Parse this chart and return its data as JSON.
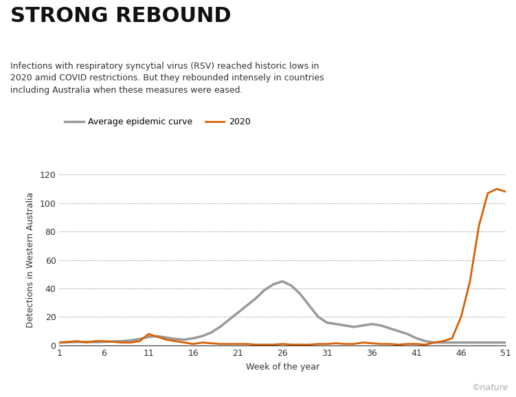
{
  "title": "STRONG REBOUND",
  "subtitle": "Infections with respiratory syncytial virus (RSV) reached historic lows in\n2020 amid COVID restrictions. But they rebounded intensely in countries\nincluding Australia when these measures were eased.",
  "ylabel": "Detections in Western Australia",
  "xlabel": "Week of the year",
  "legend_avg": "Average epidemic curve",
  "legend_2020": "2020",
  "avg_color": "#999999",
  "color_2020": "#d95f02",
  "ylim": [
    0,
    120
  ],
  "yticks": [
    0,
    20,
    40,
    60,
    80,
    100,
    120
  ],
  "xticks": [
    1,
    6,
    11,
    16,
    21,
    26,
    31,
    36,
    41,
    46,
    51
  ],
  "weeks": [
    1,
    2,
    3,
    4,
    5,
    6,
    7,
    8,
    9,
    10,
    11,
    12,
    13,
    14,
    15,
    16,
    17,
    18,
    19,
    20,
    21,
    22,
    23,
    24,
    25,
    26,
    27,
    28,
    29,
    30,
    31,
    32,
    33,
    34,
    35,
    36,
    37,
    38,
    39,
    40,
    41,
    42,
    43,
    44,
    45,
    46,
    47,
    48,
    49,
    50,
    51
  ],
  "avg_values": [
    2,
    2.2,
    2.4,
    2.5,
    2.3,
    2.5,
    2.8,
    3.0,
    3.5,
    4.5,
    6,
    6.5,
    5.5,
    4.5,
    4.0,
    5.0,
    6.5,
    9,
    13,
    18,
    23,
    28,
    33,
    39,
    43,
    45,
    42,
    36,
    28,
    20,
    16,
    15,
    14,
    13,
    14,
    15,
    14,
    12,
    10,
    8,
    5,
    3,
    2,
    2,
    2,
    2,
    2,
    2,
    2,
    2,
    2
  ],
  "values_2020": [
    2,
    2.5,
    3,
    2,
    3,
    3,
    2.5,
    2,
    2,
    3,
    8,
    6,
    4,
    3,
    2,
    1,
    2,
    1.5,
    1,
    1,
    1,
    1,
    0.5,
    0.5,
    0.5,
    1,
    0.5,
    0.5,
    0.5,
    1,
    1,
    1.5,
    1,
    1,
    2,
    1.5,
    1,
    1,
    0.5,
    1,
    1,
    0.5,
    2,
    3,
    5,
    20,
    45,
    84,
    107,
    110,
    108
  ],
  "watermark": "©nature",
  "background_color": "#ffffff",
  "avg_linewidth": 2.5,
  "line2020_linewidth": 2.0,
  "title_fontsize": 22,
  "subtitle_fontsize": 9,
  "axis_fontsize": 9,
  "tick_fontsize": 9
}
